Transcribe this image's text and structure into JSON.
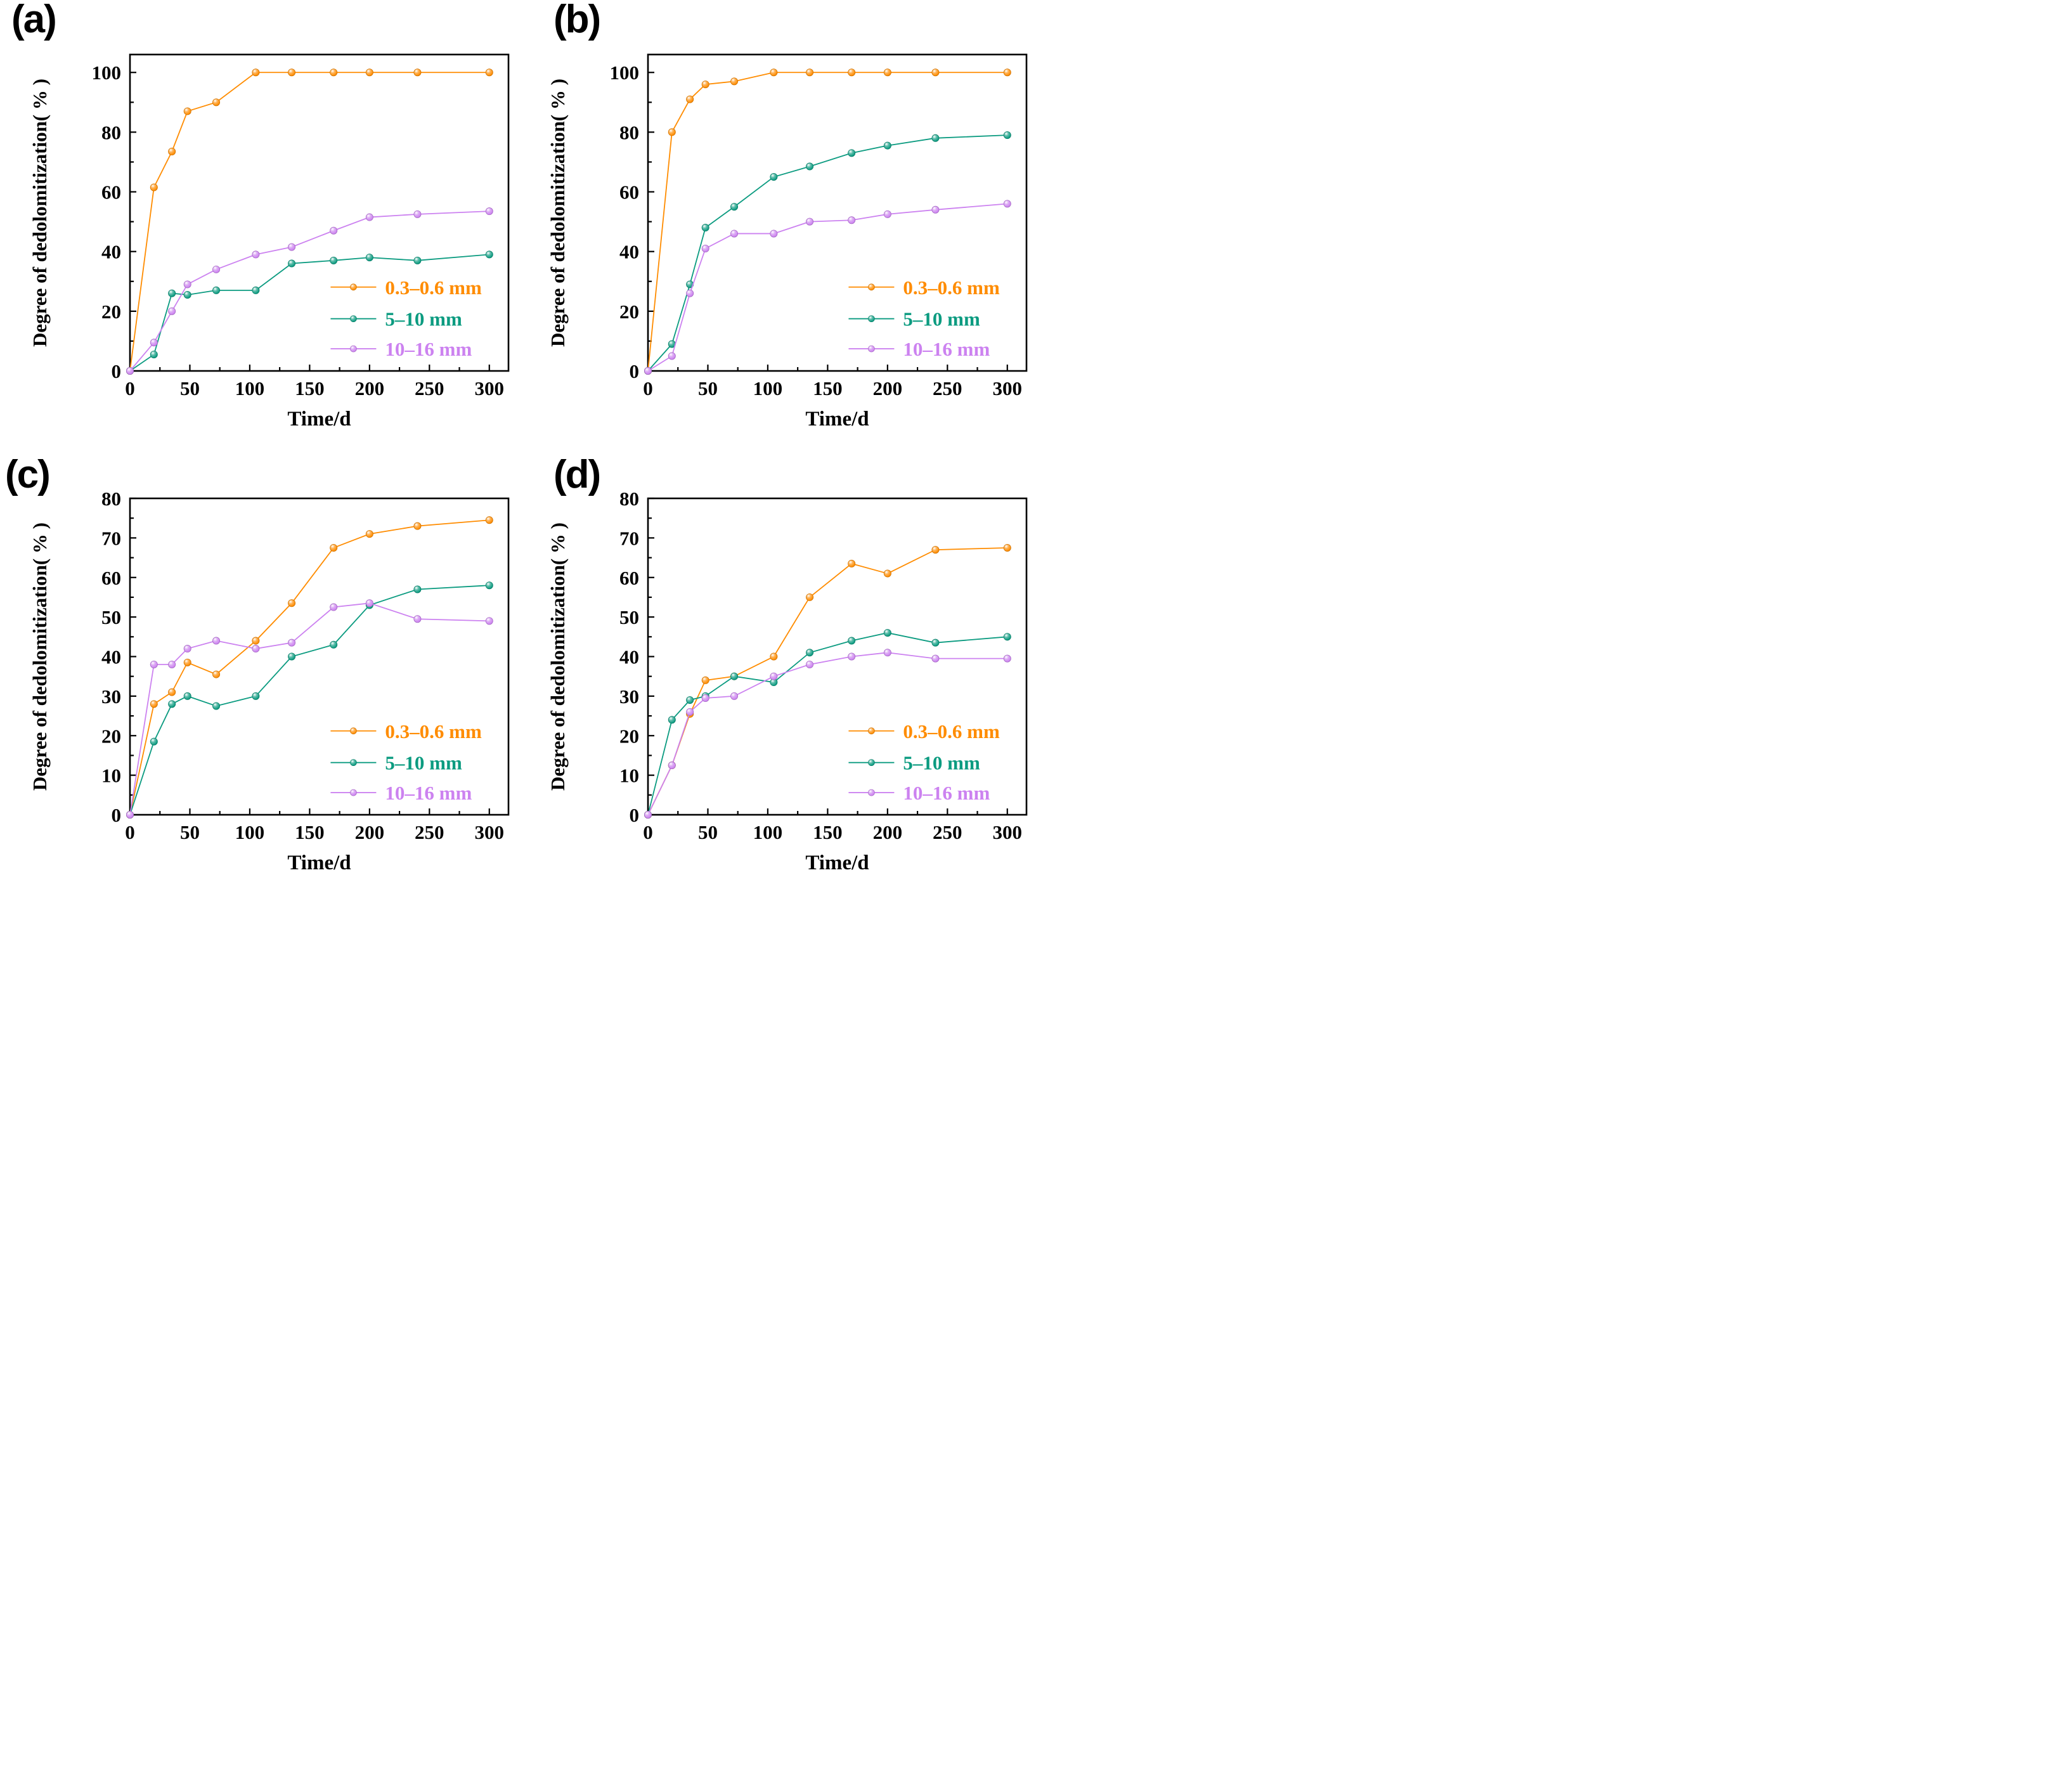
{
  "figure_background": "#ffffff",
  "axis_color": "#000000",
  "chart_data": [
    {
      "id": "a",
      "panel_label": "(a)",
      "type": "line",
      "title": "",
      "xlabel": "Time/d",
      "ylabel": "Degree of dedolomitization（%）",
      "x": [
        0,
        20,
        35,
        48,
        72,
        105,
        135,
        170,
        200,
        240,
        300
      ],
      "xticks": [
        0,
        50,
        100,
        150,
        200,
        250,
        300
      ],
      "xminor_step": 25,
      "xlim": [
        0,
        316
      ],
      "ylim": [
        0,
        106
      ],
      "yticks": [
        0,
        20,
        40,
        60,
        80,
        100
      ],
      "yminor_step": 10,
      "grid": "off",
      "legend_position": "lower right",
      "series": [
        {
          "name": "0.3–0.6 mm",
          "color": "#FF8C00",
          "values": [
            0,
            61.5,
            73.5,
            87,
            90,
            100,
            100,
            100,
            100,
            100,
            100
          ]
        },
        {
          "name": "5–10 mm",
          "color": "#0B9B80",
          "values": [
            0,
            5.5,
            26,
            25.5,
            27,
            27,
            36,
            37,
            38,
            37,
            39
          ]
        },
        {
          "name": "10–16 mm",
          "color": "#CC82F0",
          "values": [
            0,
            9.5,
            20,
            29,
            34,
            39,
            41.5,
            47,
            51.5,
            52.5,
            53.5
          ]
        }
      ]
    },
    {
      "id": "b",
      "panel_label": "(b)",
      "type": "line",
      "title": "",
      "xlabel": "Time/d",
      "ylabel": "Degree of dedolomitization（%）",
      "x": [
        0,
        20,
        35,
        48,
        72,
        105,
        135,
        170,
        200,
        240,
        300
      ],
      "xticks": [
        0,
        50,
        100,
        150,
        200,
        250,
        300
      ],
      "xminor_step": 25,
      "xlim": [
        0,
        316
      ],
      "ylim": [
        0,
        106
      ],
      "yticks": [
        0,
        20,
        40,
        60,
        80,
        100
      ],
      "yminor_step": 10,
      "grid": "off",
      "legend_position": "lower right",
      "series": [
        {
          "name": "0.3–0.6 mm",
          "color": "#FF8C00",
          "values": [
            0,
            80,
            91,
            96,
            97,
            100,
            100,
            100,
            100,
            100,
            100
          ]
        },
        {
          "name": "5–10 mm",
          "color": "#0B9B80",
          "values": [
            0,
            9,
            29,
            48,
            55,
            65,
            68.5,
            73,
            75.5,
            78,
            79
          ]
        },
        {
          "name": "10–16 mm",
          "color": "#CC82F0",
          "values": [
            0,
            5,
            26,
            41,
            46,
            46,
            50,
            50.5,
            52.5,
            54,
            56
          ]
        }
      ]
    },
    {
      "id": "c",
      "panel_label": "(c)",
      "type": "line",
      "title": "",
      "xlabel": "Time/d",
      "ylabel": "Degree of dedolomitization（%）",
      "x": [
        0,
        20,
        35,
        48,
        72,
        105,
        135,
        170,
        200,
        240,
        300
      ],
      "xticks": [
        0,
        50,
        100,
        150,
        200,
        250,
        300
      ],
      "xminor_step": 25,
      "xlim": [
        0,
        316
      ],
      "ylim": [
        0,
        80
      ],
      "yticks": [
        0,
        10,
        20,
        30,
        40,
        50,
        60,
        70,
        80
      ],
      "yminor_step": 5,
      "grid": "off",
      "legend_position": "lower right",
      "series": [
        {
          "name": "0.3–0.6 mm",
          "color": "#FF8C00",
          "values": [
            0,
            28,
            31,
            38.5,
            35.5,
            44,
            53.5,
            67.5,
            71,
            73,
            74.5
          ]
        },
        {
          "name": "5–10 mm",
          "color": "#0B9B80",
          "values": [
            0,
            18.5,
            28,
            30,
            27.5,
            30,
            40,
            43,
            53,
            57,
            58
          ]
        },
        {
          "name": "10–16 mm",
          "color": "#CC82F0",
          "values": [
            0,
            38,
            38,
            42,
            44,
            42,
            43.5,
            52.5,
            53.5,
            49.5,
            49
          ]
        }
      ]
    },
    {
      "id": "d",
      "panel_label": "(d)",
      "type": "line",
      "title": "",
      "xlabel": "Time/d",
      "ylabel": "Degree of dedolomitization（%）",
      "x": [
        0,
        20,
        35,
        48,
        72,
        105,
        135,
        170,
        200,
        240,
        300
      ],
      "xticks": [
        0,
        50,
        100,
        150,
        200,
        250,
        300
      ],
      "xminor_step": 25,
      "xlim": [
        0,
        316
      ],
      "ylim": [
        0,
        80
      ],
      "yticks": [
        0,
        10,
        20,
        30,
        40,
        50,
        60,
        70,
        80
      ],
      "yminor_step": 5,
      "grid": "off",
      "legend_position": "lower right",
      "series": [
        {
          "name": "0.3–0.6 mm",
          "color": "#FF8C00",
          "values": [
            0,
            12.5,
            25.5,
            34,
            35,
            40,
            55,
            63.5,
            61,
            67,
            67.5
          ]
        },
        {
          "name": "5–10 mm",
          "color": "#0B9B80",
          "values": [
            0,
            24,
            29,
            30,
            35,
            33.5,
            41,
            44,
            46,
            43.5,
            45
          ]
        },
        {
          "name": "10–16 mm",
          "color": "#CC82F0",
          "values": [
            0,
            12.5,
            26,
            29.5,
            30,
            35,
            38,
            40,
            41,
            39.5,
            39.5
          ]
        }
      ]
    }
  ]
}
